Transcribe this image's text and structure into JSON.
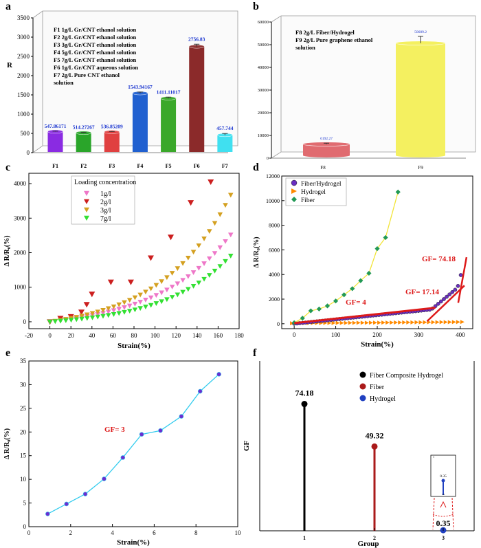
{
  "chart_data": [
    {
      "panel_label": "a",
      "type": "bar",
      "ylabel": "R",
      "ylim": [
        0,
        3500
      ],
      "yticks": [
        0,
        500,
        1000,
        1500,
        2000,
        2500,
        3000,
        3500
      ],
      "categories": [
        "F1",
        "F2",
        "F3",
        "F4",
        "F5",
        "F6",
        "F7"
      ],
      "values": [
        547.86171,
        514.27267,
        536.85209,
        1543.94167,
        1411.11017,
        2756.83,
        457.744
      ],
      "value_labels": [
        "547.86171",
        "514.27267",
        "536.85209",
        "1543.94167",
        "1411.11017",
        "2756.83",
        "457.744"
      ],
      "errors": [
        10,
        10,
        10,
        30,
        30,
        60,
        40
      ],
      "colors": [
        "#8a2be2",
        "#2aa52a",
        "#e04040",
        "#2060d0",
        "#3aa82a",
        "#8b2a2a",
        "#40e0f0"
      ],
      "legend": [
        "F1 1g/L Gr/CNT ethanol solution",
        "F2 2g/L Gr/CNT ethanol solution",
        "F3 3g/L Gr/CNT ethanol solution",
        "F4 5g/L Gr/CNT ethanol solution",
        "F5 7g/L Gr/CNT ethanol solution",
        "F6 1g/L Gr/CNT aqueous solution",
        "F7 2g/L  Pure CNT ethanol",
        "solution"
      ]
    },
    {
      "panel_label": "b",
      "type": "bar",
      "ylim": [
        0,
        60000
      ],
      "yticks": [
        0,
        10000,
        20000,
        30000,
        40000,
        50000,
        60000
      ],
      "categories": [
        "F8",
        "F9"
      ],
      "values": [
        6192.27,
        50689.2
      ],
      "value_labels": [
        "6192.27",
        "50689.2"
      ],
      "errors": [
        400,
        3000
      ],
      "colors": [
        "#e06b70",
        "#f4f060"
      ],
      "legend": [
        "F8 2g/L Fiber/Hydrogel",
        "F9 2g/L Pure graphene ethanol",
        "solution"
      ]
    },
    {
      "panel_label": "c",
      "type": "scatter",
      "xlabel": "Strain(%)",
      "ylabel": "Δ R/R₀(%)",
      "xlim": [
        -20,
        180
      ],
      "ylim": [
        -200,
        4300
      ],
      "xticks": [
        -20,
        0,
        20,
        40,
        60,
        80,
        100,
        120,
        140,
        160,
        180
      ],
      "yticks": [
        0,
        1000,
        2000,
        3000,
        4000
      ],
      "legend_title": "Loading concentration",
      "series": [
        {
          "name": "1g/l",
          "color": "#ee77c8",
          "marker": "tri-down",
          "func": "exp",
          "a": 240,
          "k": 0.0142,
          "xmax": 172,
          "n": 35
        },
        {
          "name": "2g/l",
          "color": "#cc1f1f",
          "marker": "tri-down",
          "x": [
            0,
            10,
            20,
            30,
            35,
            40,
            58,
            77,
            96,
            115,
            134,
            153
          ],
          "y": [
            0,
            100,
            150,
            280,
            500,
            800,
            1150,
            1150,
            1850,
            2450,
            3450,
            4050
          ]
        },
        {
          "name": "3g/l",
          "color": "#d4a020",
          "marker": "tri-down",
          "func": "exp",
          "a": 290,
          "k": 0.0152,
          "xmax": 172,
          "n": 35
        },
        {
          "name": "7g/l",
          "color": "#33e033",
          "marker": "tri-down",
          "func": "exp",
          "a": 135,
          "k": 0.0158,
          "xmax": 172,
          "n": 35
        }
      ]
    },
    {
      "panel_label": "d",
      "type": "scatter",
      "xlabel": "Strain(%)",
      "ylabel": "Δ R/R₀(%)",
      "xlim": [
        -30,
        430
      ],
      "ylim": [
        -400,
        12000
      ],
      "xticks": [
        0,
        100,
        200,
        300,
        400
      ],
      "yticks": [
        0,
        2000,
        4000,
        6000,
        8000,
        10000,
        12000
      ],
      "series": [
        {
          "name": "Fiber/Hydrogel",
          "color": "#6a2fc0",
          "marker": "circle"
        },
        {
          "name": "Hydrogel",
          "color": "#ff8a00",
          "marker": "tri-right"
        },
        {
          "name": "Fiber",
          "color": "#229955",
          "marker": "diamond",
          "x": [
            0,
            20,
            40,
            60,
            80,
            100,
            120,
            140,
            160,
            180,
            200,
            220,
            250
          ],
          "y": [
            80,
            450,
            1050,
            1200,
            1450,
            1850,
            2350,
            2850,
            3500,
            4100,
            6100,
            7000,
            10700
          ]
        }
      ],
      "annotations": [
        "GF= 4",
        "GF= 17.14",
        "GF= 74.18"
      ]
    },
    {
      "panel_label": "e",
      "type": "line",
      "xlabel": "Strain(%)",
      "ylabel": "Δ R/R₀(%)",
      "xlim": [
        0,
        10
      ],
      "ylim": [
        0,
        35
      ],
      "xticks": [
        0,
        2,
        4,
        6,
        8,
        10
      ],
      "yticks": [
        0,
        5,
        10,
        15,
        20,
        25,
        30,
        35
      ],
      "x": [
        0.9,
        1.8,
        2.7,
        3.6,
        4.5,
        5.4,
        6.3,
        7.3,
        8.2,
        9.1
      ],
      "y": [
        2.7,
        4.8,
        6.9,
        10.1,
        14.6,
        19.5,
        20.3,
        23.3,
        28.6,
        32.2
      ],
      "annotations": [
        "GF= 3"
      ]
    },
    {
      "panel_label": "f",
      "type": "stem",
      "xlabel": "Group",
      "ylabel": "GF",
      "categories": [
        "1",
        "2",
        "3"
      ],
      "values": [
        74.18,
        49.32,
        0.35
      ],
      "value_labels": [
        "74.18",
        "49.32",
        "0.35"
      ],
      "colors": [
        "#000000",
        "#aa1a1a",
        "#2040c0"
      ],
      "legend": [
        "Fiber Composite Hydrogel",
        "Fiber",
        "Hydrogel"
      ],
      "inset": {
        "value_label": "0.35",
        "ytick": "1",
        "xtick": "3.0"
      }
    }
  ]
}
